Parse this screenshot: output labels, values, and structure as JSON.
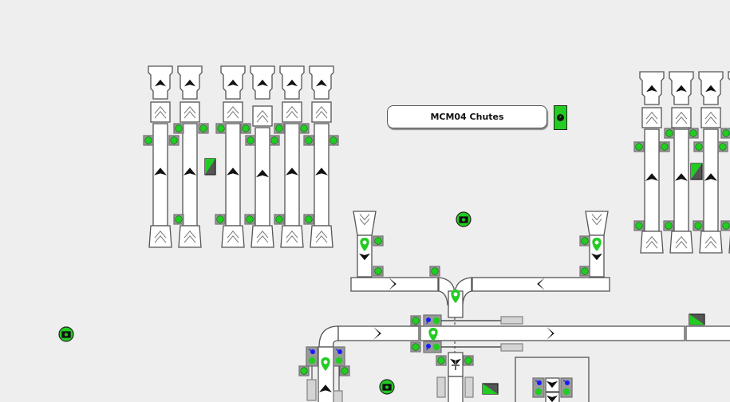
{
  "header": {
    "title": "MCM04 Chutes",
    "power_icon": "power-bolt-icon"
  },
  "colors": {
    "background": "#eeeeee",
    "status_ok": "#22cc22",
    "sensor_bg": "#9a9a9a",
    "belt": "#ffffff",
    "arrow": "#111111",
    "photo_eye_blue": "#1a1aff"
  },
  "chutes": {
    "left_group_count": 6,
    "right_group_count": 4
  },
  "icons": [
    "sensor-icon",
    "camera-icon",
    "location-pin-icon",
    "chevron-icon",
    "status-toggle-icon"
  ]
}
